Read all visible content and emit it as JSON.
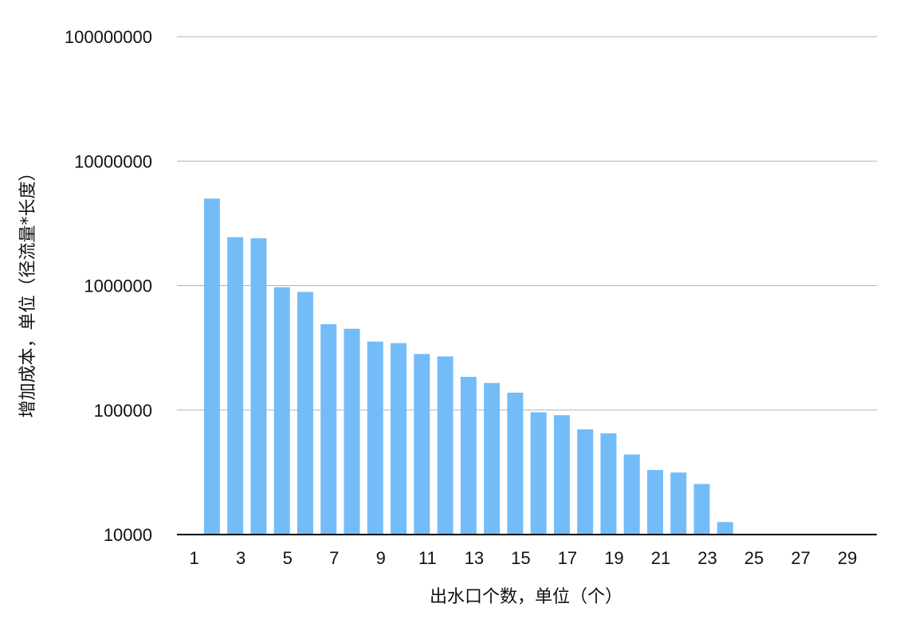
{
  "chart_data": {
    "type": "bar",
    "xlabel": "出水口个数，单位（个）",
    "ylabel": "增加成本，单位（径流量*长度）",
    "y_scale": "log",
    "ylim": [
      10000,
      100000000
    ],
    "y_ticks": [
      "10000",
      "100000",
      "1000000",
      "10000000",
      "100000000"
    ],
    "x_range": [
      1,
      30
    ],
    "x_ticks": [
      "1",
      "3",
      "5",
      "7",
      "9",
      "11",
      "13",
      "15",
      "17",
      "19",
      "21",
      "23",
      "25",
      "27",
      "29"
    ],
    "grid": true,
    "bar_color": "#74BCF8",
    "grid_color": "#B3B3B3",
    "axis_color": "#000000",
    "x": [
      2,
      3,
      4,
      5,
      6,
      7,
      8,
      9,
      10,
      11,
      12,
      13,
      14,
      15,
      16,
      17,
      18,
      19,
      20,
      21,
      22,
      23,
      24
    ],
    "values": [
      5000000,
      2450000,
      2400000,
      970000,
      890000,
      490000,
      450000,
      355000,
      345000,
      282000,
      270000,
      185000,
      165000,
      138000,
      96000,
      91000,
      70000,
      65000,
      44000,
      33000,
      31500,
      25500,
      12600
    ]
  }
}
